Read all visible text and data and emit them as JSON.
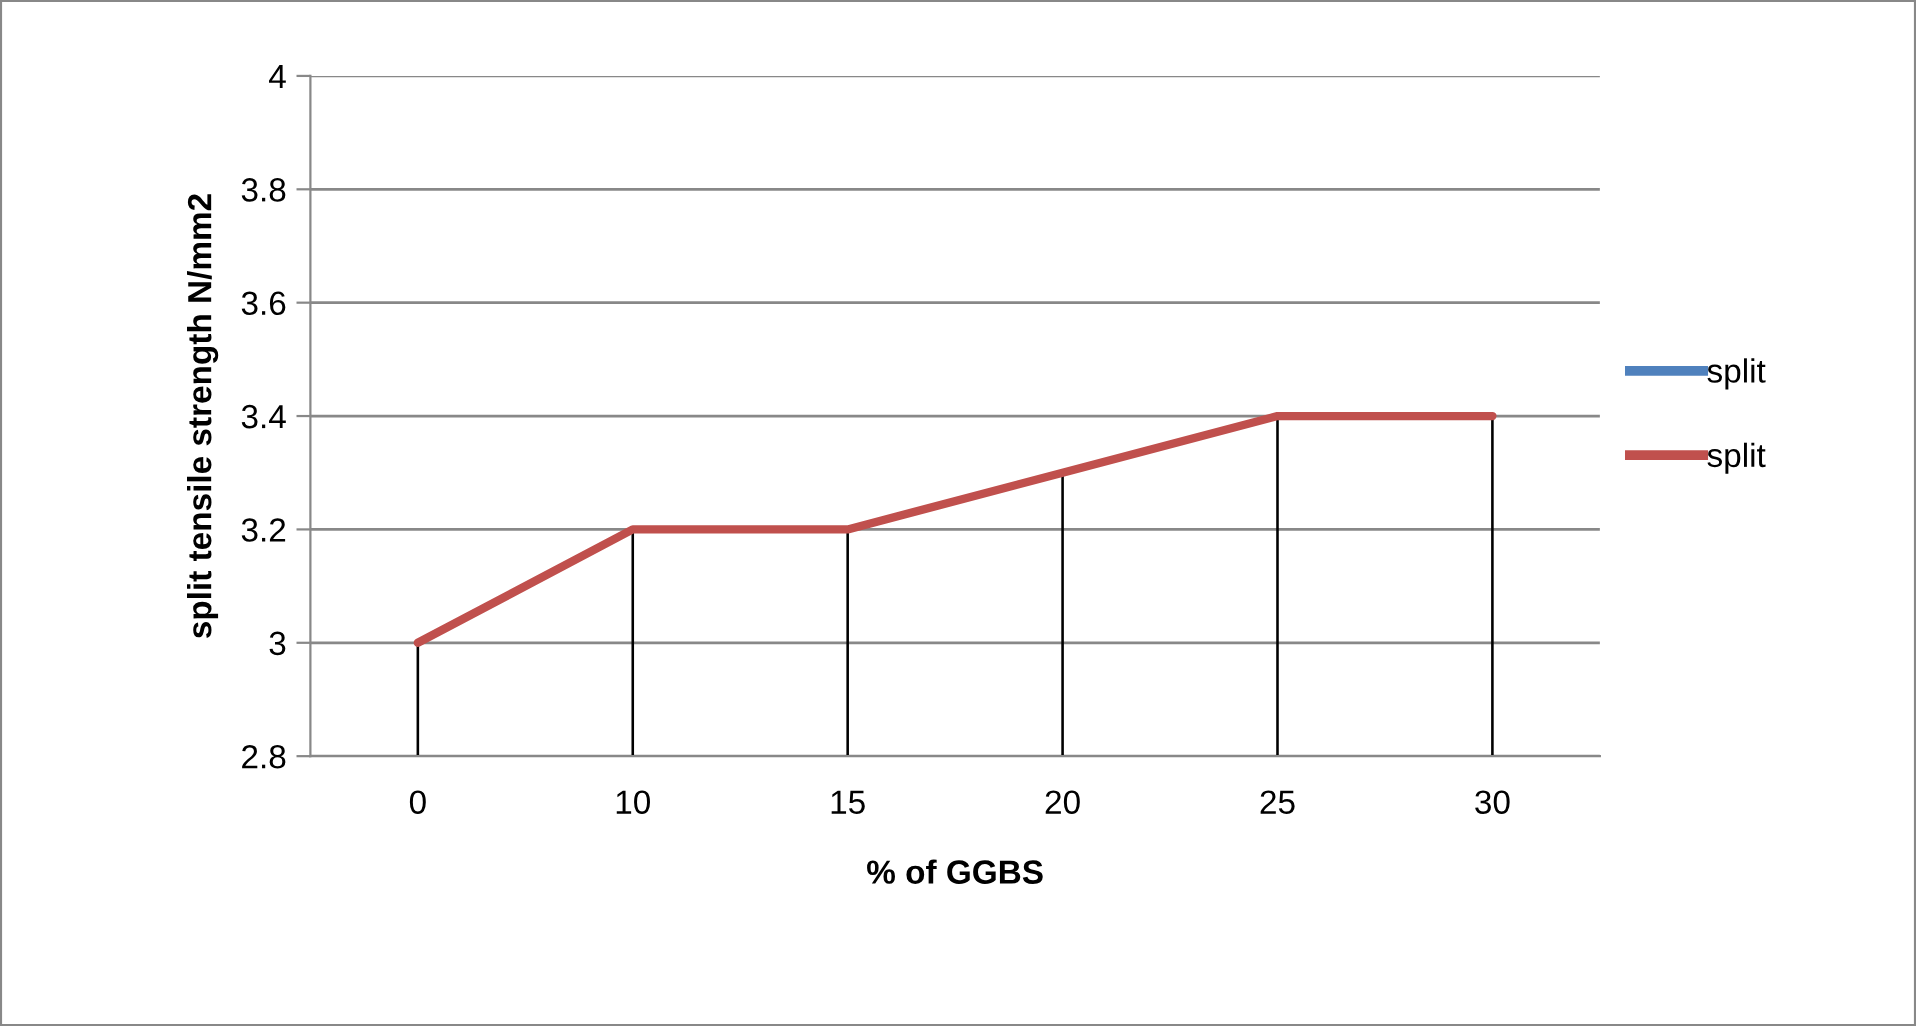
{
  "chart_data": {
    "type": "line",
    "xlabel": "% of GGBS",
    "ylabel": "split tensile strength N/mm2",
    "categories": [
      "0",
      "10",
      "15",
      "20",
      "25",
      "30"
    ],
    "series": [
      {
        "type": "bar",
        "color": "#000000",
        "values": [
          3,
          3.2,
          3.2,
          3.3,
          3.4,
          3.4
        ]
      },
      {
        "name": "split",
        "color": "#4f81bd",
        "values": [
          null,
          null,
          null,
          null,
          null,
          null
        ]
      },
      {
        "name": "split",
        "color": "#c0504d",
        "values": [
          3,
          3.2,
          3.2,
          3.3,
          3.4,
          3.4
        ]
      }
    ],
    "ylim": [
      2.8,
      4
    ],
    "yticks": [
      2.8,
      3,
      3.2,
      3.4,
      3.6,
      3.8,
      4
    ],
    "grid": "y",
    "legend": "right",
    "marker": "none",
    "line_style": "solid"
  }
}
